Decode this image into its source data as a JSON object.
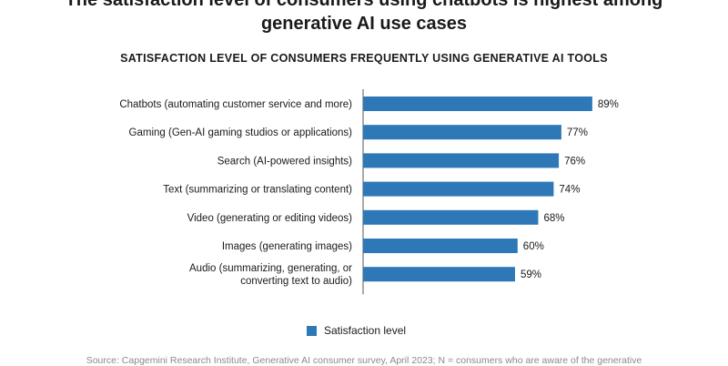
{
  "header": {
    "title_line1": "The satisfaction level of consumers using chatbots is highest among",
    "title_line2": "generative AI use cases"
  },
  "chart_data": {
    "type": "bar",
    "orientation": "horizontal",
    "title": "SATISFACTION LEVEL OF CONSUMERS FREQUENTLY USING GENERATIVE AI TOOLS",
    "categories": [
      [
        "Chatbots (automating customer service and more)"
      ],
      [
        "Gaming (Gen-AI gaming studios or applications)"
      ],
      [
        "Search (AI-powered insights)"
      ],
      [
        "Text (summarizing or translating content)"
      ],
      [
        "Video (generating or editing videos)"
      ],
      [
        "Images (generating images)"
      ],
      [
        "Audio (summarizing, generating, or",
        "converting text to audio)"
      ]
    ],
    "series": [
      {
        "name": "Satisfaction level",
        "values": [
          89,
          77,
          76,
          74,
          68,
          60,
          59
        ]
      }
    ],
    "value_labels": [
      "89%",
      "77%",
      "76%",
      "74%",
      "68%",
      "60%",
      "59%"
    ],
    "xlim": [
      0,
      100
    ],
    "grid": false,
    "legend_position": "bottom",
    "bar_color": "#2e78b7"
  },
  "legend": {
    "label": "Satisfaction level"
  },
  "footer": {
    "source": "Source: Capgemini Research Institute, Generative AI consumer survey, April 2023; N = consumers who are aware of the generative"
  }
}
